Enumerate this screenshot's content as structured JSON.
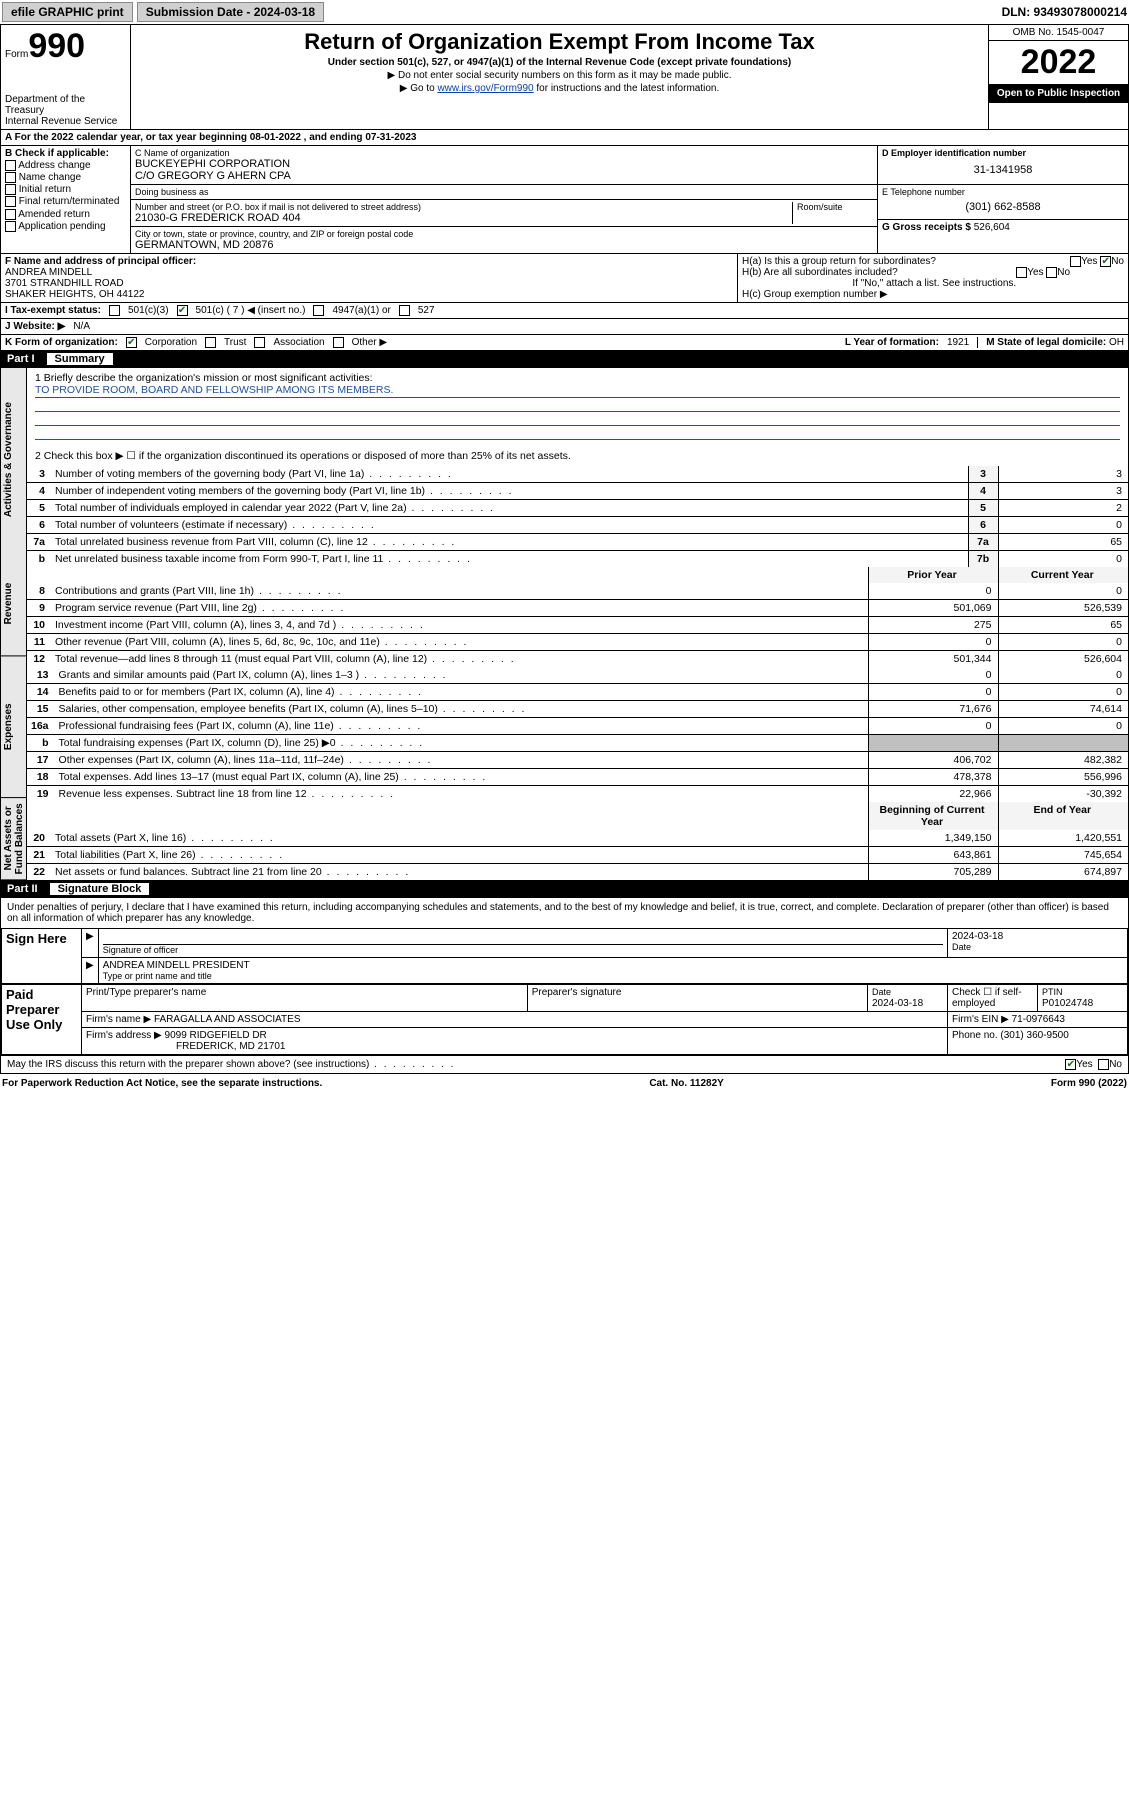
{
  "topbar": {
    "efile": "efile GRAPHIC print",
    "submission_label": "Submission Date - 2024-03-18",
    "dln": "DLN: 93493078000214"
  },
  "header": {
    "form_word": "Form",
    "form_num": "990",
    "dept": "Department of the Treasury\nInternal Revenue Service",
    "title": "Return of Organization Exempt From Income Tax",
    "subtitle": "Under section 501(c), 527, or 4947(a)(1) of the Internal Revenue Code (except private foundations)",
    "note1": "▶ Do not enter social security numbers on this form as it may be made public.",
    "note2_pre": "▶ Go to ",
    "note2_link": "www.irs.gov/Form990",
    "note2_post": " for instructions and the latest information.",
    "omb": "OMB No. 1545-0047",
    "year": "2022",
    "public": "Open to Public Inspection"
  },
  "row_a": "A  For the 2022 calendar year, or tax year beginning 08-01-2022   , and ending 07-31-2023",
  "col_b": {
    "heading": "B Check if applicable:",
    "items": [
      "Address change",
      "Name change",
      "Initial return",
      "Final return/terminated",
      "Amended return",
      "Application pending"
    ]
  },
  "col_c": {
    "name_label": "C Name of organization",
    "name": "BUCKEYEPHI CORPORATION",
    "care_of": "C/O GREGORY G AHERN CPA",
    "dba_label": "Doing business as",
    "dba": "",
    "addr_label": "Number and street (or P.O. box if mail is not delivered to street address)",
    "addr": "21030-G FREDERICK ROAD 404",
    "room_label": "Room/suite",
    "city_label": "City or town, state or province, country, and ZIP or foreign postal code",
    "city": "GERMANTOWN, MD  20876"
  },
  "col_d": {
    "ein_label": "D Employer identification number",
    "ein": "31-1341958",
    "tel_label": "E Telephone number",
    "tel": "(301) 662-8588",
    "gross_label": "G Gross receipts $",
    "gross": "526,604"
  },
  "row_f": {
    "label": "F Name and address of principal officer:",
    "name": "ANDREA MINDELL",
    "addr1": "3701 STRANDHILL ROAD",
    "addr2": "SHAKER HEIGHTS, OH  44122"
  },
  "row_h": {
    "ha": "H(a)  Is this a group return for subordinates?",
    "ha_yes": "Yes",
    "ha_no": "No",
    "hb": "H(b)  Are all subordinates included?",
    "hb_yes": "Yes",
    "hb_no": "No",
    "hb_note": "If \"No,\" attach a list. See instructions.",
    "hc": "H(c)  Group exemption number ▶"
  },
  "row_i": {
    "label": "I   Tax-exempt status:",
    "c3": "501(c)(3)",
    "c": "501(c) ( 7 ) ◀ (insert no.)",
    "a1": "4947(a)(1) or",
    "s527": "527"
  },
  "row_j": {
    "label": "J   Website: ▶",
    "val": "N/A"
  },
  "row_k": {
    "label": "K Form of organization:",
    "corp": "Corporation",
    "trust": "Trust",
    "assoc": "Association",
    "other": "Other ▶",
    "yof_label": "L Year of formation:",
    "yof": "1921",
    "dom_label": "M State of legal domicile:",
    "dom": "OH"
  },
  "part1": {
    "num": "Part I",
    "title": "Summary"
  },
  "mission": {
    "q1": "1   Briefly describe the organization's mission or most significant activities:",
    "text": "TO PROVIDE ROOM, BOARD AND FELLOWSHIP AMONG ITS MEMBERS.",
    "q2": "2   Check this box ▶ ☐  if the organization discontinued its operations or disposed of more than 25% of its net assets."
  },
  "sidelabels": {
    "gov": "Activities & Governance",
    "rev": "Revenue",
    "exp": "Expenses",
    "net": "Net Assets or Fund Balances"
  },
  "gov_rows": [
    {
      "n": "3",
      "d": "Number of voting members of the governing body (Part VI, line 1a)",
      "box": "3",
      "v": "3"
    },
    {
      "n": "4",
      "d": "Number of independent voting members of the governing body (Part VI, line 1b)",
      "box": "4",
      "v": "3"
    },
    {
      "n": "5",
      "d": "Total number of individuals employed in calendar year 2022 (Part V, line 2a)",
      "box": "5",
      "v": "2"
    },
    {
      "n": "6",
      "d": "Total number of volunteers (estimate if necessary)",
      "box": "6",
      "v": "0"
    },
    {
      "n": "7a",
      "d": "Total unrelated business revenue from Part VIII, column (C), line 12",
      "box": "7a",
      "v": "65"
    },
    {
      "n": "b",
      "d": "Net unrelated business taxable income from Form 990-T, Part I, line 11",
      "box": "7b",
      "v": "0"
    }
  ],
  "two_col_hdr": {
    "prior": "Prior Year",
    "current": "Current Year"
  },
  "rev_rows": [
    {
      "n": "8",
      "d": "Contributions and grants (Part VIII, line 1h)",
      "p": "0",
      "c": "0"
    },
    {
      "n": "9",
      "d": "Program service revenue (Part VIII, line 2g)",
      "p": "501,069",
      "c": "526,539"
    },
    {
      "n": "10",
      "d": "Investment income (Part VIII, column (A), lines 3, 4, and 7d )",
      "p": "275",
      "c": "65"
    },
    {
      "n": "11",
      "d": "Other revenue (Part VIII, column (A), lines 5, 6d, 8c, 9c, 10c, and 11e)",
      "p": "0",
      "c": "0"
    },
    {
      "n": "12",
      "d": "Total revenue—add lines 8 through 11 (must equal Part VIII, column (A), line 12)",
      "p": "501,344",
      "c": "526,604"
    }
  ],
  "exp_rows": [
    {
      "n": "13",
      "d": "Grants and similar amounts paid (Part IX, column (A), lines 1–3 )",
      "p": "0",
      "c": "0"
    },
    {
      "n": "14",
      "d": "Benefits paid to or for members (Part IX, column (A), line 4)",
      "p": "0",
      "c": "0"
    },
    {
      "n": "15",
      "d": "Salaries, other compensation, employee benefits (Part IX, column (A), lines 5–10)",
      "p": "71,676",
      "c": "74,614"
    },
    {
      "n": "16a",
      "d": "Professional fundraising fees (Part IX, column (A), line 11e)",
      "p": "0",
      "c": "0"
    },
    {
      "n": "b",
      "d": "Total fundraising expenses (Part IX, column (D), line 25) ▶0",
      "p": "",
      "c": "",
      "gray": true
    },
    {
      "n": "17",
      "d": "Other expenses (Part IX, column (A), lines 11a–11d, 11f–24e)",
      "p": "406,702",
      "c": "482,382"
    },
    {
      "n": "18",
      "d": "Total expenses. Add lines 13–17 (must equal Part IX, column (A), line 25)",
      "p": "478,378",
      "c": "556,996"
    },
    {
      "n": "19",
      "d": "Revenue less expenses. Subtract line 18 from line 12",
      "p": "22,966",
      "c": "-30,392"
    }
  ],
  "net_hdr": {
    "begin": "Beginning of Current Year",
    "end": "End of Year"
  },
  "net_rows": [
    {
      "n": "20",
      "d": "Total assets (Part X, line 16)",
      "p": "1,349,150",
      "c": "1,420,551"
    },
    {
      "n": "21",
      "d": "Total liabilities (Part X, line 26)",
      "p": "643,861",
      "c": "745,654"
    },
    {
      "n": "22",
      "d": "Net assets or fund balances. Subtract line 21 from line 20",
      "p": "705,289",
      "c": "674,897"
    }
  ],
  "part2": {
    "num": "Part II",
    "title": "Signature Block"
  },
  "penalty": "Under penalties of perjury, I declare that I have examined this return, including accompanying schedules and statements, and to the best of my knowledge and belief, it is true, correct, and complete. Declaration of preparer (other than officer) is based on all information of which preparer has any knowledge.",
  "sign": {
    "lead": "Sign Here",
    "sig_label": "Signature of officer",
    "date": "2024-03-18",
    "date_label": "Date",
    "name": "ANDREA MINDELL  PRESIDENT",
    "name_label": "Type or print name and title"
  },
  "prep": {
    "lead": "Paid Preparer Use Only",
    "col1": "Print/Type preparer's name",
    "col2": "Preparer's signature",
    "col3_label": "Date",
    "col3": "2024-03-18",
    "col4_label": "Check ☐ if self-employed",
    "col5_label": "PTIN",
    "col5": "P01024748",
    "firm_name_label": "Firm's name    ▶",
    "firm_name": "FARAGALLA AND ASSOCIATES",
    "firm_ein_label": "Firm's EIN ▶",
    "firm_ein": "71-0976643",
    "firm_addr_label": "Firm's address ▶",
    "firm_addr1": "9099 RIDGEFIELD DR",
    "firm_addr2": "FREDERICK, MD  21701",
    "phone_label": "Phone no.",
    "phone": "(301) 360-9500"
  },
  "discuss": {
    "q": "May the IRS discuss this return with the preparer shown above? (see instructions)",
    "yes": "Yes",
    "no": "No"
  },
  "footer": {
    "left": "For Paperwork Reduction Act Notice, see the separate instructions.",
    "mid": "Cat. No. 11282Y",
    "right": "Form 990 (2022)"
  }
}
